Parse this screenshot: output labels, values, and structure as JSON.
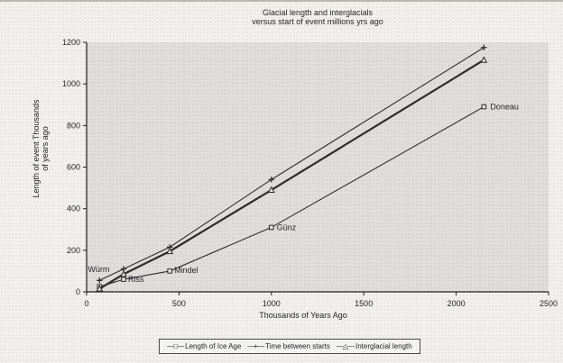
{
  "title": {
    "line1": "Glacial length and interglacials",
    "line2": "versus start of event millions yrs ago"
  },
  "chart_data": {
    "type": "line",
    "title": "Glacial length and interglacials versus start of event millions yrs ago",
    "xlabel": "Thousands of Years Ago",
    "ylabel": "Length of event Thousands of years ago",
    "ylabel_line1": "Length of event Thousands",
    "ylabel_line2": "of years ago",
    "xlim": [
      0,
      2500
    ],
    "ylim": [
      0,
      1200
    ],
    "x_ticks": [
      0,
      500,
      1000,
      1500,
      2000,
      2500
    ],
    "y_ticks": [
      0,
      200,
      400,
      600,
      800,
      1000,
      1200
    ],
    "grid": false,
    "legend_position": "bottom",
    "x": [
      70,
      200,
      450,
      1000,
      2150
    ],
    "point_labels": [
      "Würm",
      "Riss",
      "Mindel",
      "Günz",
      "Doneau"
    ],
    "series": [
      {
        "name": "Length of Ice Age",
        "marker": "square",
        "thick": false,
        "values": [
          25,
          60,
          100,
          310,
          890
        ]
      },
      {
        "name": "Time between starts",
        "marker": "plus",
        "thick": false,
        "values": [
          55,
          110,
          215,
          540,
          1175
        ]
      },
      {
        "name": "Interglacial length",
        "marker": "triangle",
        "thick": true,
        "values": [
          15,
          85,
          195,
          490,
          1115
        ]
      }
    ],
    "colors": {
      "line": "#2d2d2d",
      "axis": "#1f1f1f",
      "text": "#262626",
      "plot_bg": "rgba(70,68,64,0.10)",
      "page_bg": "#f1f0ec"
    }
  }
}
